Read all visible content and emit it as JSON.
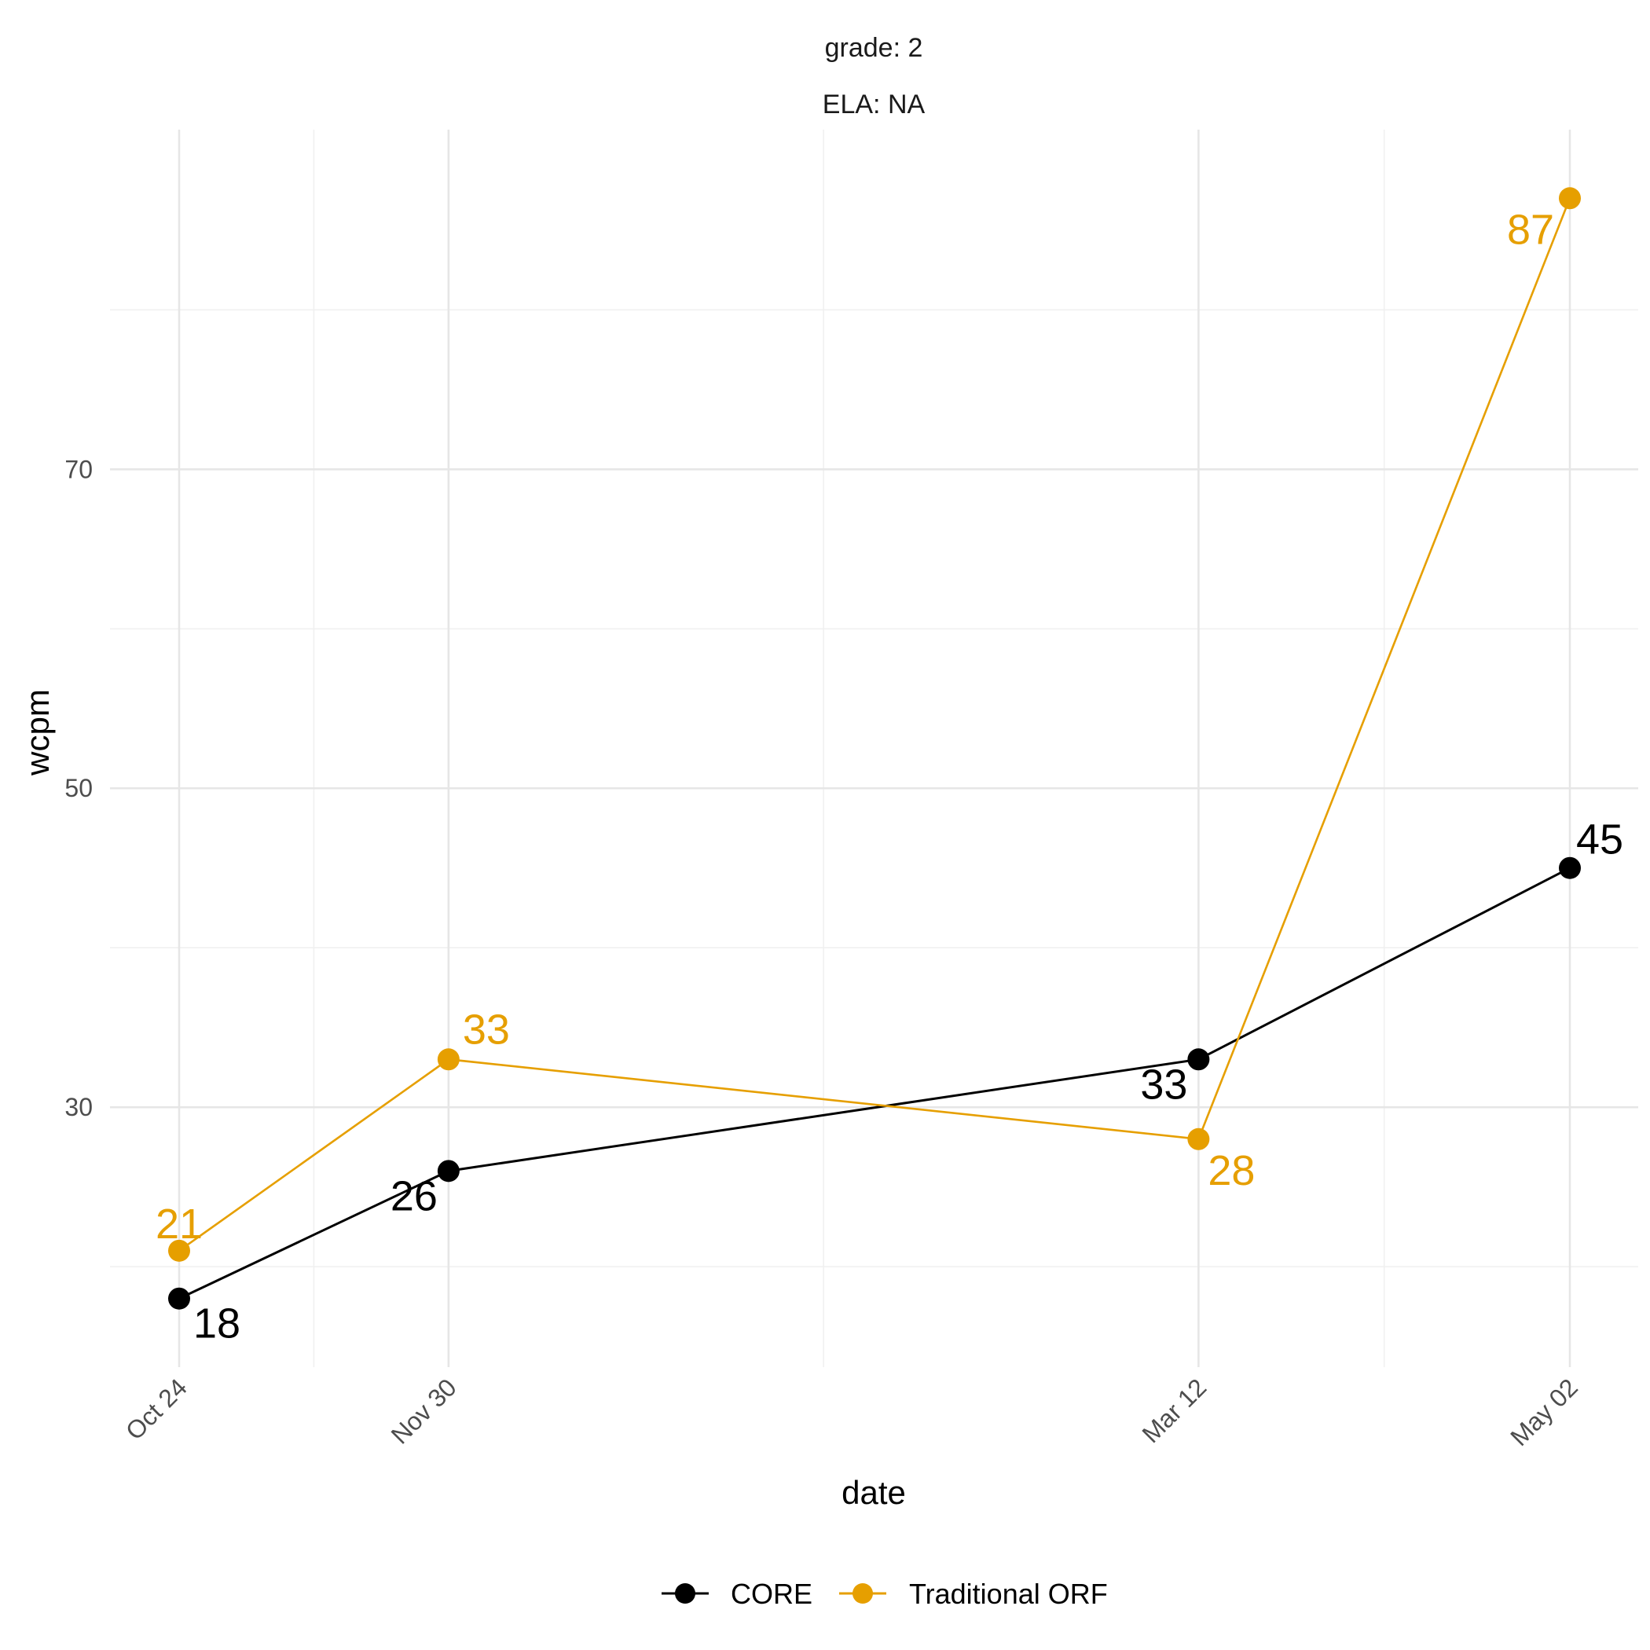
{
  "strip": {
    "line1": "grade: 2",
    "line2": "ELA: NA"
  },
  "axes": {
    "xlabel": "date",
    "ylabel": "wcpm"
  },
  "colors": {
    "CORE": "#000000",
    "Traditional ORF": "#E69F00"
  },
  "chart_data": {
    "type": "line",
    "title": "",
    "facet": [
      "grade: 2",
      "ELA: NA"
    ],
    "xlabel": "date",
    "ylabel": "wcpm",
    "x": [
      "Oct 24",
      "Nov 30",
      "Mar 12",
      "May 02"
    ],
    "x_day_offsets": [
      0,
      37,
      140,
      191
    ],
    "ylim": [
      13.7,
      91.3
    ],
    "y_major_ticks": [
      30,
      50,
      70
    ],
    "y_minor_ticks": [
      20,
      40,
      60,
      80
    ],
    "grid": true,
    "legend": "bottom",
    "series": [
      {
        "name": "CORE",
        "values": [
          18,
          26,
          33,
          45
        ],
        "labels": [
          "18",
          "26",
          "33",
          "45"
        ]
      },
      {
        "name": "Traditional ORF",
        "values": [
          21,
          33,
          28,
          87
        ],
        "labels": [
          "21",
          "33",
          "28",
          "87"
        ]
      }
    ]
  }
}
